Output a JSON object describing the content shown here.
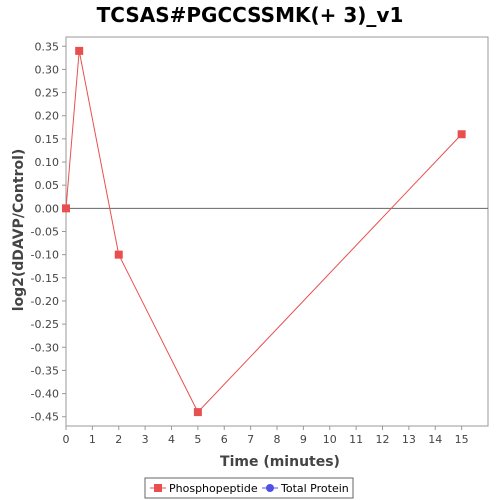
{
  "chart_data": {
    "type": "line",
    "title": "TCSAS#PGCCSSMK(+ 3)_v1",
    "xlabel": "Time (minutes)",
    "ylabel": "log2(dDAVP/Control)",
    "xlim": [
      0,
      16
    ],
    "ylim": [
      -0.47,
      0.37
    ],
    "xticks": [
      0,
      1,
      2,
      3,
      4,
      5,
      6,
      7,
      8,
      9,
      10,
      11,
      12,
      13,
      14,
      15
    ],
    "yticks": [
      0.35,
      0.3,
      0.25,
      0.2,
      0.15,
      0.1,
      0.05,
      0.0,
      -0.05,
      -0.1,
      -0.15,
      -0.2,
      -0.25,
      -0.3,
      -0.35,
      -0.4,
      -0.45
    ],
    "ytick_labels": [
      "0.35",
      "0.30",
      "0.25",
      "0.20",
      "0.15",
      "0.10",
      "0.05",
      "0.00",
      "-0.05",
      "-0.10",
      "-0.15",
      "-0.20",
      "-0.25",
      "-0.30",
      "-0.35",
      "-0.40",
      "-0.45"
    ],
    "zero_line": true,
    "grid": false,
    "legend_position": "bottom",
    "series": [
      {
        "name": "Phosphopeptide",
        "color": "#e85050",
        "marker": "square",
        "x": [
          0,
          0.5,
          2,
          5,
          15
        ],
        "y": [
          0.0,
          0.34,
          -0.1,
          -0.44,
          0.16
        ]
      },
      {
        "name": "Total Protein",
        "color": "#5050e8",
        "marker": "circle",
        "x": [],
        "y": []
      }
    ]
  }
}
